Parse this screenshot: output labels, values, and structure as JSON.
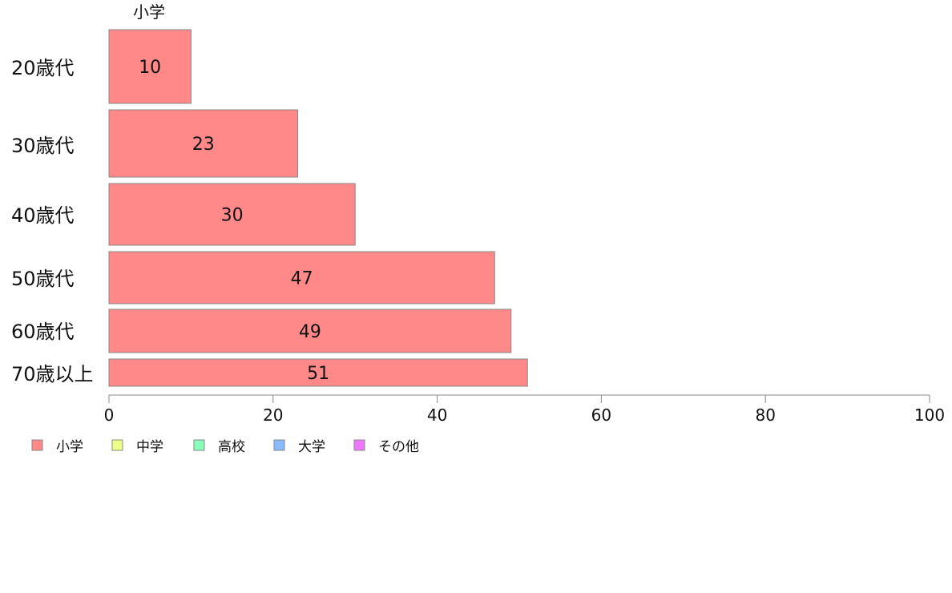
{
  "chart_data": {
    "type": "bar",
    "orientation": "horizontal",
    "categories": [
      "20歳代",
      "30歳代",
      "40歳代",
      "50歳代",
      "60歳代",
      "70歳以上"
    ],
    "series": [
      {
        "name": "小学",
        "values": [
          10,
          23,
          30,
          47,
          49,
          51
        ]
      }
    ],
    "column_label": "小学",
    "xlim": [
      0,
      100
    ],
    "x_ticks": [
      "0",
      "20",
      "40",
      "60",
      "80",
      "100"
    ],
    "grid": false,
    "legend_position": "bottom-left",
    "legend": [
      {
        "label": "小学",
        "color": "#ff8888"
      },
      {
        "label": "中学",
        "color": "#eeff88"
      },
      {
        "label": "高校",
        "color": "#88ffbb"
      },
      {
        "label": "大学",
        "color": "#88bbff"
      },
      {
        "label": "その他",
        "color": "#ee77ff"
      }
    ],
    "bar_color": "#ff8888",
    "bar_stroke": "#888888"
  }
}
